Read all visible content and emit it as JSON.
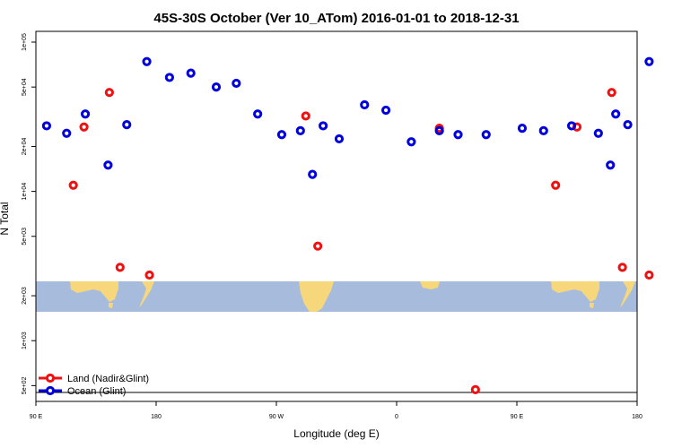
{
  "chart_data": {
    "type": "scatter",
    "title": "45S-30S October (Ver 10_ATom)   2016-01-01 to 2018-12-31",
    "xlabel": "Longitude (deg E)",
    "ylabel": "N Total",
    "x_ticks": [
      {
        "value": 90,
        "label": "90 E"
      },
      {
        "value": 180,
        "label": "180"
      },
      {
        "value": 270,
        "label": "90 W"
      },
      {
        "value": 360,
        "label": "0"
      },
      {
        "value": 450,
        "label": "90 E"
      },
      {
        "value": 540,
        "label": "180"
      }
    ],
    "xlim": [
      90,
      540
    ],
    "y_scale": "log",
    "ylim": [
      450,
      100000
    ],
    "y_ticks": [
      {
        "value": 500,
        "label": "5e+02"
      },
      {
        "value": 1000,
        "label": "1e+03"
      },
      {
        "value": 2000,
        "label": "2e+03"
      },
      {
        "value": 5000,
        "label": "5e+03"
      },
      {
        "value": 10000,
        "label": "1e+04"
      },
      {
        "value": 20000,
        "label": "2e+04"
      },
      {
        "value": 50000,
        "label": "5e+04"
      },
      {
        "value": 100000,
        "label": "1e+05"
      }
    ],
    "grid": false,
    "legend_position": "bottom-left",
    "map_strip": {
      "ocean_color": "#a7bcdc",
      "land_color": "#f7d77c"
    },
    "series": [
      {
        "name": "Land (Nadir&Glint)",
        "color": "#ee1111",
        "points": [
          {
            "x": 118,
            "y": 11000
          },
          {
            "x": 126,
            "y": 27000
          },
          {
            "x": 145,
            "y": 46000
          },
          {
            "x": 153,
            "y": 3100
          },
          {
            "x": 175,
            "y": 2750
          },
          {
            "x": 292,
            "y": 32000
          },
          {
            "x": 301,
            "y": 4300
          },
          {
            "x": 392,
            "y": 26500
          },
          {
            "x": 419,
            "y": 470
          },
          {
            "x": 479,
            "y": 11000
          },
          {
            "x": 495,
            "y": 27000
          },
          {
            "x": 521,
            "y": 46000
          },
          {
            "x": 529,
            "y": 3100
          },
          {
            "x": 549,
            "y": 2750
          }
        ]
      },
      {
        "name": "Ocean (Glint)",
        "color": "#0000dd",
        "points": [
          {
            "x": 98,
            "y": 27500
          },
          {
            "x": 113,
            "y": 24500
          },
          {
            "x": 127,
            "y": 33000
          },
          {
            "x": 144,
            "y": 15000
          },
          {
            "x": 158,
            "y": 28000
          },
          {
            "x": 173,
            "y": 74000
          },
          {
            "x": 190,
            "y": 58000
          },
          {
            "x": 206,
            "y": 62000
          },
          {
            "x": 225,
            "y": 50000
          },
          {
            "x": 240,
            "y": 53000
          },
          {
            "x": 256,
            "y": 33000
          },
          {
            "x": 274,
            "y": 24000
          },
          {
            "x": 288,
            "y": 25500
          },
          {
            "x": 297,
            "y": 13000
          },
          {
            "x": 305,
            "y": 27500
          },
          {
            "x": 317,
            "y": 22500
          },
          {
            "x": 336,
            "y": 38000
          },
          {
            "x": 352,
            "y": 35000
          },
          {
            "x": 371,
            "y": 21500
          },
          {
            "x": 392,
            "y": 25500
          },
          {
            "x": 406,
            "y": 24000
          },
          {
            "x": 427,
            "y": 24000
          },
          {
            "x": 454,
            "y": 26500
          },
          {
            "x": 470,
            "y": 25500
          },
          {
            "x": 491,
            "y": 27500
          },
          {
            "x": 511,
            "y": 24500
          },
          {
            "x": 524,
            "y": 33000
          },
          {
            "x": 520,
            "y": 15000
          },
          {
            "x": 533,
            "y": 28000
          },
          {
            "x": 549,
            "y": 74000
          }
        ]
      }
    ]
  }
}
